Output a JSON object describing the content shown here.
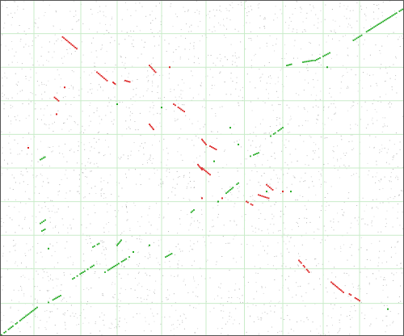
{
  "colors": {
    "background": "#ffffff",
    "frame": "#555555",
    "grid": "#c9ecc9",
    "noise": "#9a9a9a",
    "forward": "#22aa22",
    "reverse": "#dd2222"
  },
  "grid": {
    "x_fractions": [
      0.0,
      0.084,
      0.2,
      0.29,
      0.4,
      0.51,
      0.605,
      0.7,
      0.8,
      0.89,
      1.0
    ],
    "y_fractions": [
      0.0,
      0.097,
      0.2,
      0.3,
      0.4,
      0.5,
      0.6,
      0.7,
      0.8,
      0.9,
      1.0
    ]
  },
  "segments": {
    "forward": [
      [
        0.0,
        0.0,
        0.092,
        0.085
      ],
      [
        0.12,
        0.1,
        0.15,
        0.12
      ],
      [
        0.18,
        0.17,
        0.232,
        0.21
      ],
      [
        0.26,
        0.19,
        0.32,
        0.235
      ],
      [
        0.29,
        0.27,
        0.3,
        0.285
      ],
      [
        0.1,
        0.31,
        0.115,
        0.32
      ],
      [
        0.1,
        0.335,
        0.112,
        0.345
      ],
      [
        0.23,
        0.265,
        0.245,
        0.275
      ],
      [
        0.41,
        0.235,
        0.425,
        0.245
      ],
      [
        0.47,
        0.365,
        0.48,
        0.375
      ],
      [
        0.56,
        0.425,
        0.59,
        0.455
      ],
      [
        0.1,
        0.525,
        0.115,
        0.535
      ],
      [
        0.62,
        0.535,
        0.64,
        0.545
      ],
      [
        0.67,
        0.595,
        0.7,
        0.62
      ],
      [
        0.71,
        0.805,
        0.725,
        0.81
      ],
      [
        0.75,
        0.815,
        0.775,
        0.82
      ],
      [
        0.78,
        0.82,
        0.82,
        0.845
      ],
      [
        0.875,
        0.88,
        0.895,
        0.895
      ],
      [
        0.9,
        0.9,
        1.0,
        0.975
      ]
    ],
    "reverse": [
      [
        0.155,
        0.89,
        0.19,
        0.855
      ],
      [
        0.24,
        0.785,
        0.265,
        0.76
      ],
      [
        0.28,
        0.755,
        0.285,
        0.75
      ],
      [
        0.31,
        0.76,
        0.325,
        0.755
      ],
      [
        0.37,
        0.805,
        0.385,
        0.785
      ],
      [
        0.135,
        0.71,
        0.145,
        0.7
      ],
      [
        0.43,
        0.69,
        0.46,
        0.665
      ],
      [
        0.37,
        0.63,
        0.38,
        0.615
      ],
      [
        0.5,
        0.585,
        0.51,
        0.57
      ],
      [
        0.52,
        0.565,
        0.535,
        0.555
      ],
      [
        0.49,
        0.51,
        0.5,
        0.495
      ],
      [
        0.5,
        0.5,
        0.52,
        0.48
      ],
      [
        0.61,
        0.4,
        0.625,
        0.39
      ],
      [
        0.64,
        0.42,
        0.665,
        0.41
      ],
      [
        0.66,
        0.45,
        0.675,
        0.435
      ],
      [
        0.74,
        0.225,
        0.765,
        0.19
      ],
      [
        0.82,
        0.16,
        0.85,
        0.13
      ],
      [
        0.865,
        0.125,
        0.89,
        0.105
      ]
    ]
  },
  "isolated": [
    [
      0.14,
      0.66
    ],
    [
      0.29,
      0.69
    ],
    [
      0.4,
      0.68
    ],
    [
      0.42,
      0.8
    ],
    [
      0.57,
      0.62
    ],
    [
      0.59,
      0.57
    ],
    [
      0.5,
      0.41
    ],
    [
      0.54,
      0.4
    ],
    [
      0.66,
      0.43
    ],
    [
      0.7,
      0.43
    ],
    [
      0.72,
      0.43
    ],
    [
      0.53,
      0.52
    ],
    [
      0.07,
      0.56
    ],
    [
      0.33,
      0.25
    ],
    [
      0.12,
      0.26
    ],
    [
      0.16,
      0.74
    ],
    [
      0.81,
      0.8
    ],
    [
      0.96,
      0.08
    ],
    [
      0.55,
      0.41
    ],
    [
      0.37,
      0.27
    ]
  ]
}
